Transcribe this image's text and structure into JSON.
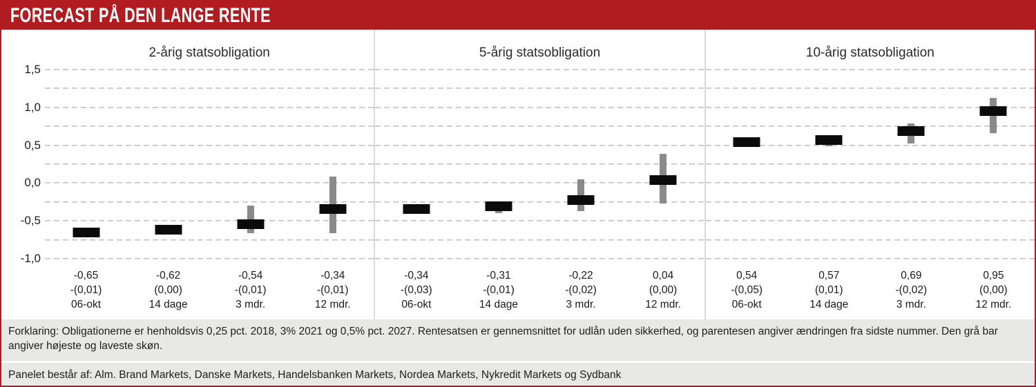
{
  "header": {
    "title": "FORECAST PÅ DEN LANGE RENTE"
  },
  "colors": {
    "accent_red": "#b11c21",
    "bar_black": "#0b0b0b",
    "range_gray": "#8a8a8a",
    "gridline_gray": "#c2c2c2",
    "separator_gray": "#dadada",
    "footer_bg": "#e8e8e6"
  },
  "chart_data": {
    "type": "bar",
    "style": "forecast range chart: black bar = average forecast, gray vertical bar = span between highest and lowest estimate",
    "ylim": [
      -1.0,
      1.5
    ],
    "ytick_step": 0.25,
    "grid": "dashed horizontal gridlines every 0.25",
    "legend_position": "none",
    "yticks_labeled": [
      {
        "value": 1.5,
        "label": "1,5"
      },
      {
        "value": 1.0,
        "label": "1,0"
      },
      {
        "value": 0.5,
        "label": "0,5"
      },
      {
        "value": 0.0,
        "label": "0,0"
      },
      {
        "value": -0.5,
        "label": "-0,5"
      },
      {
        "value": -1.0,
        "label": "-1,0"
      }
    ],
    "panels": [
      {
        "title": "2-årig statsobligation",
        "points": [
          {
            "period": "06-okt",
            "value": -0.65,
            "value_label": "-0,65",
            "change_label": "-(0,01)",
            "low": -0.65,
            "high": -0.65
          },
          {
            "period": "14 dage",
            "value": -0.62,
            "value_label": "-0,62",
            "change_label": "(0,00)",
            "low": -0.62,
            "high": -0.62
          },
          {
            "period": "3 mdr.",
            "value": -0.54,
            "value_label": "-0,54",
            "change_label": "-(0,01)",
            "low": -0.66,
            "high": -0.3
          },
          {
            "period": "12 mdr.",
            "value": -0.34,
            "value_label": "-0,34",
            "change_label": "-(0,01)",
            "low": -0.66,
            "high": 0.09
          }
        ]
      },
      {
        "title": "5-årig statsobligation",
        "points": [
          {
            "period": "06-okt",
            "value": -0.34,
            "value_label": "-0,34",
            "change_label": "-(0,03)",
            "low": -0.34,
            "high": -0.34
          },
          {
            "period": "14 dage",
            "value": -0.31,
            "value_label": "-0,31",
            "change_label": "-(0,01)",
            "low": -0.4,
            "high": -0.24
          },
          {
            "period": "3 mdr.",
            "value": -0.22,
            "value_label": "-0,22",
            "change_label": "-(0,02)",
            "low": -0.37,
            "high": 0.05
          },
          {
            "period": "12 mdr.",
            "value": 0.04,
            "value_label": "0,04",
            "change_label": "(0,00)",
            "low": -0.27,
            "high": 0.39
          }
        ]
      },
      {
        "title": "10-årig statsobligation",
        "points": [
          {
            "period": "06-okt",
            "value": 0.54,
            "value_label": "0,54",
            "change_label": "-(0,05)",
            "low": 0.54,
            "high": 0.54
          },
          {
            "period": "14 dage",
            "value": 0.57,
            "value_label": "0,57",
            "change_label": "(0,01)",
            "low": 0.49,
            "high": 0.57
          },
          {
            "period": "3 mdr.",
            "value": 0.69,
            "value_label": "0,69",
            "change_label": "-(0,02)",
            "low": 0.52,
            "high": 0.79
          },
          {
            "period": "12 mdr.",
            "value": 0.95,
            "value_label": "0,95",
            "change_label": "(0,00)",
            "low": 0.66,
            "high": 1.13
          }
        ]
      }
    ]
  },
  "footer": {
    "explanation": "Forklaring: Obligationerne er henholdsvis 0,25 pct. 2018, 3% 2021 og 0,5% pct. 2027. Rentesatsen er gennemsnittet for udlån uden sikkerhed, og parentesen angiver ændringen fra sidste nummer. Den grå bar angiver højeste og laveste skøn.",
    "panel_line": "Panelet består af: Alm. Brand Markets, Danske Markets, Handelsbanken Markets, Nordea Markets, Nykredit Markets og Sydbank"
  }
}
